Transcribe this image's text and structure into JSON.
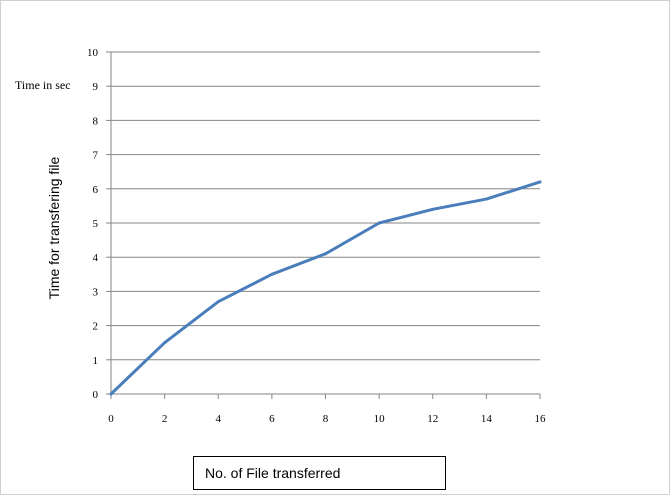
{
  "chart_data": {
    "type": "line",
    "title": "",
    "xlabel": "No. of File transferred",
    "ylabel": "Time for transfering file",
    "annotation": "Time in sec",
    "x": [
      0,
      2,
      4,
      6,
      8,
      10,
      12,
      14,
      16
    ],
    "series": [
      {
        "values": [
          0,
          1.5,
          2.7,
          3.5,
          4.1,
          5.0,
          5.4,
          5.7,
          6.2
        ]
      }
    ],
    "xlim": [
      0,
      16
    ],
    "ylim": [
      0,
      10
    ],
    "xticks": [
      "0",
      "2",
      "4",
      "6",
      "8",
      "10",
      "12",
      "14",
      "16"
    ],
    "yticks": [
      "0",
      "1",
      "2",
      "3",
      "4",
      "5",
      "6",
      "7",
      "8",
      "9",
      "10"
    ],
    "grid": "horizontal",
    "legend": "none",
    "line_color": "#4a7ebb",
    "grid_color": "#868686"
  }
}
